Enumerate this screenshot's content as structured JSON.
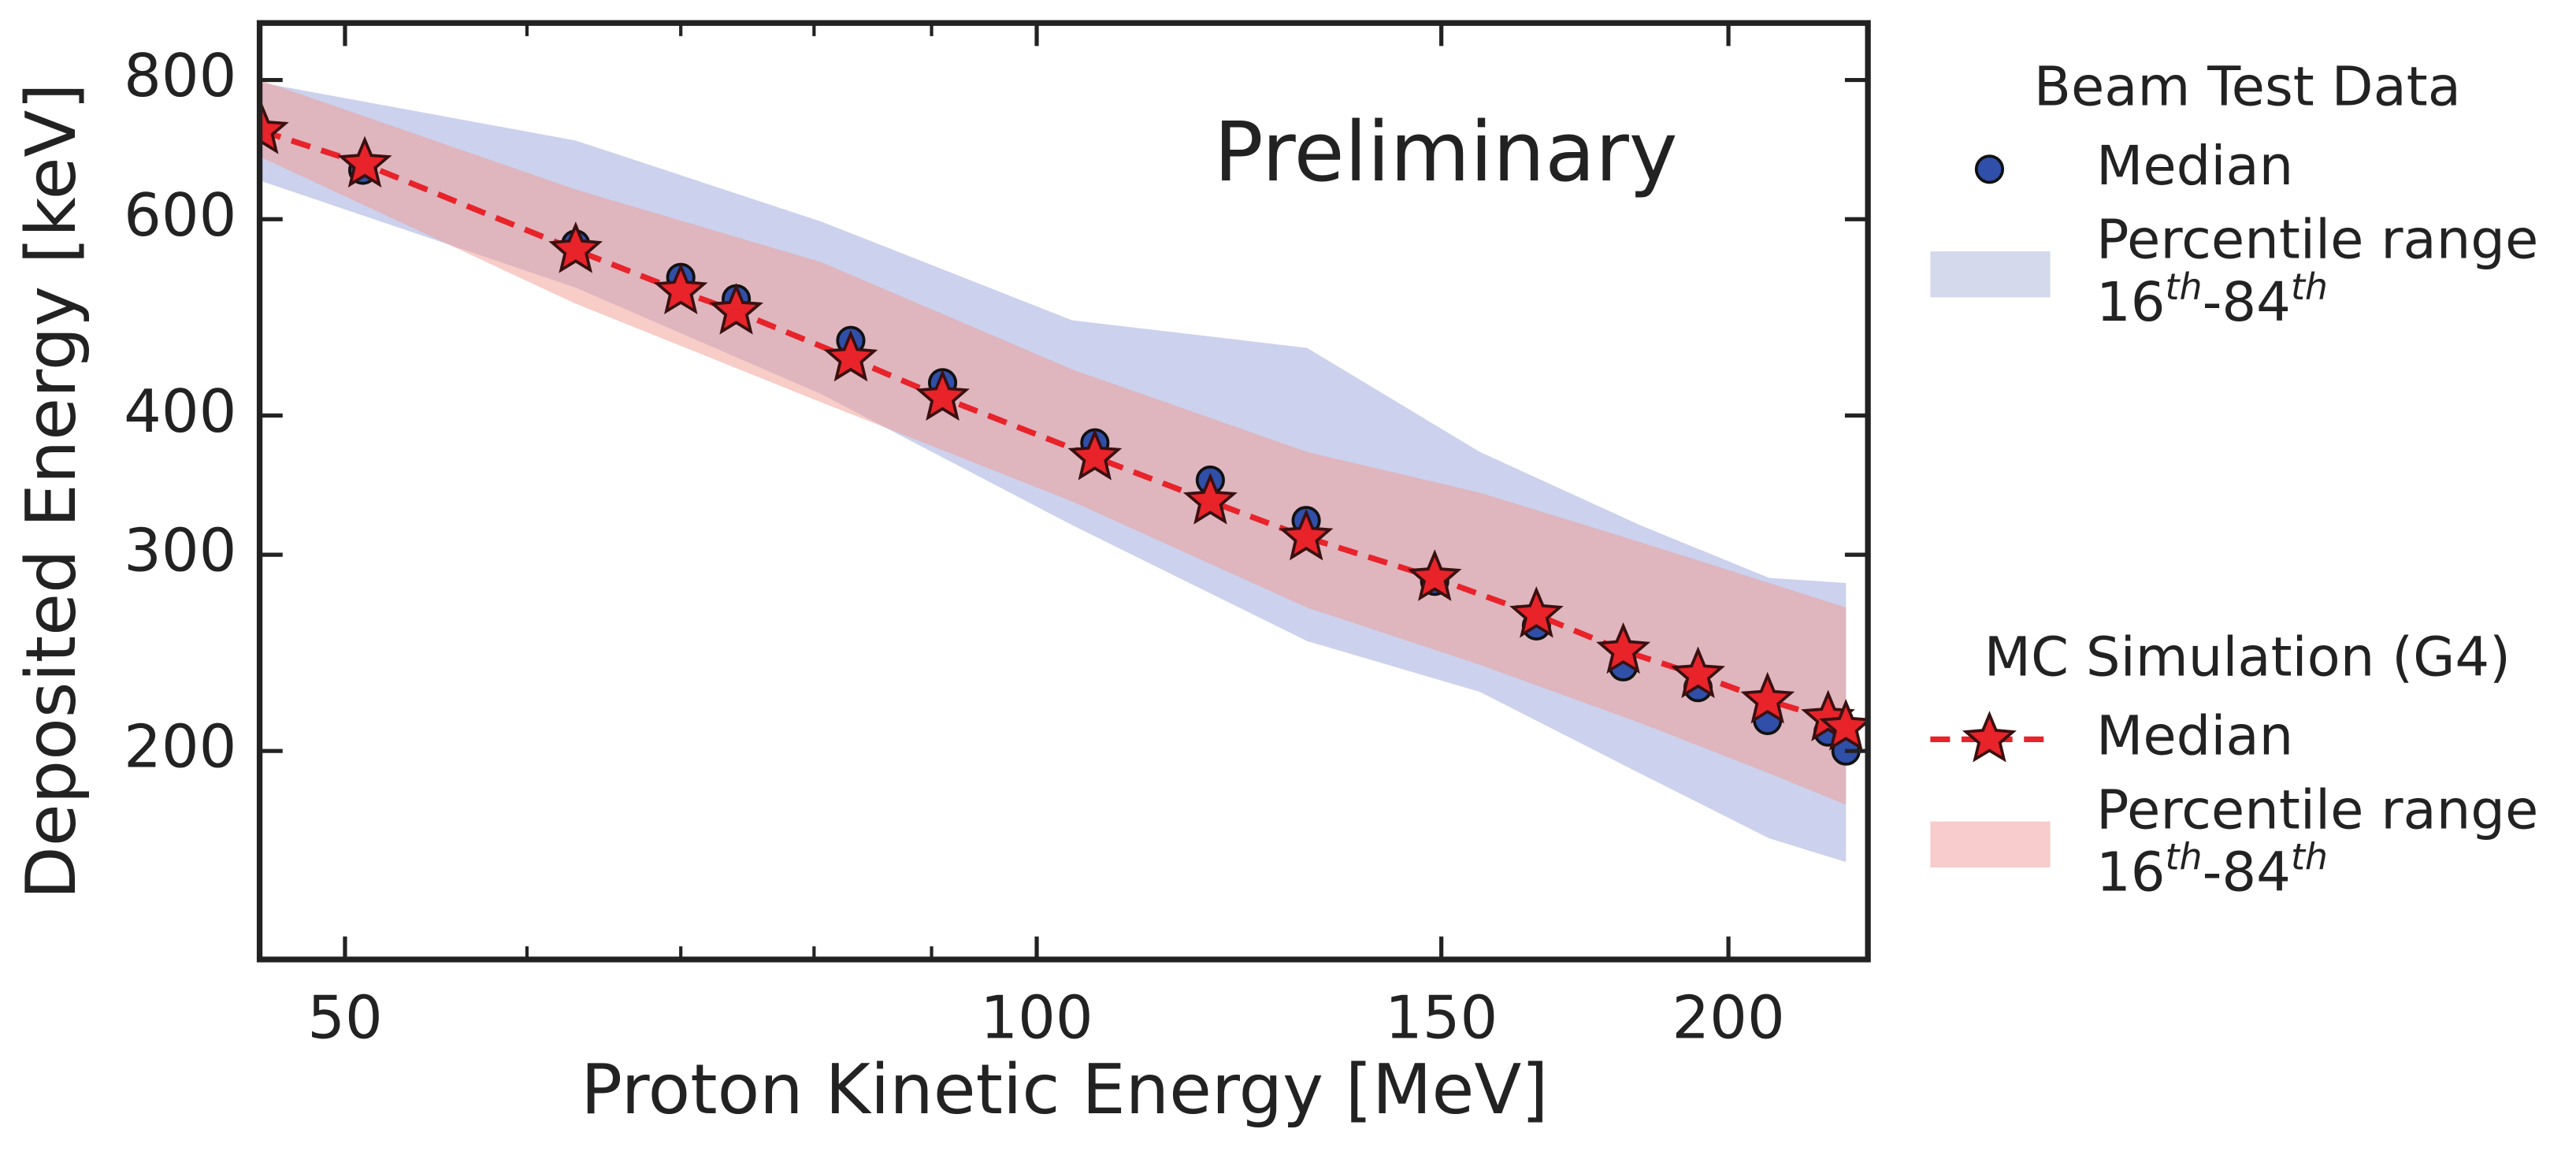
{
  "chart_data": {
    "type": "line",
    "annotation": "Preliminary",
    "xlabel": "Proton Kinetic Energy [MeV]",
    "ylabel": "Deposited Energy [keV]",
    "xscale": "log",
    "yscale": "log",
    "xlim": [
      45.9,
      230
    ],
    "ylim": [
      130,
      900
    ],
    "xticks": [
      50,
      100,
      150,
      200
    ],
    "yticks": [
      200,
      300,
      400,
      600,
      800
    ],
    "xminor": [
      60,
      70,
      80,
      90
    ],
    "legend_groups": [
      "Beam Test Data",
      "MC Simulation (G4)"
    ],
    "series": [
      {
        "kind": "band",
        "group": 0,
        "name": "Percentile range",
        "name_sup": [
          "16",
          "th",
          "-84",
          "th"
        ],
        "color": "#9aa3dc",
        "legend_color": "#d4d9ec",
        "x": [
          45.9,
          63,
          80.6,
          103.6,
          131.1,
          155.9,
          183,
          208.3,
          225
        ],
        "upper": [
          796,
          706,
          597,
          487,
          460,
          371,
          319,
          286,
          283
        ],
        "lower": [
          650,
          521,
          418,
          319,
          251,
          226,
          191,
          167,
          159
        ]
      },
      {
        "kind": "band",
        "group": 1,
        "name": "Percentile range",
        "name_sup": [
          "16",
          "th",
          "-84",
          "th"
        ],
        "color": "#f29a8f",
        "legend_color": "#f8cccc",
        "x": [
          45.9,
          63,
          80.6,
          103.6,
          131.1,
          155.9,
          183,
          208.3,
          225
        ],
        "upper": [
          800,
          638,
          549,
          440,
          371,
          341,
          308,
          283,
          269
        ],
        "lower": [
          683,
          504,
          411,
          335,
          269,
          239,
          212,
          191,
          179
        ]
      },
      {
        "kind": "markers",
        "group": 0,
        "name": "Median",
        "color": "#2f4fa8",
        "x": [
          50.9,
          63,
          70,
          74,
          83,
          91,
          106,
          119,
          131,
          149,
          165,
          180,
          194,
          208,
          221,
          225
        ],
        "values": [
          664,
          570,
          532,
          509,
          467,
          428,
          378,
          350,
          322,
          284,
          259,
          238,
          228,
          213,
          208,
          200
        ]
      },
      {
        "kind": "stars",
        "group": 1,
        "name": "Median",
        "color": "#e8232a",
        "x": [
          46,
          51,
          63,
          70,
          74,
          83,
          91,
          106,
          119,
          131,
          149,
          165,
          180,
          194,
          208,
          221,
          225
        ],
        "values": [
          720,
          672,
          563,
          517,
          496,
          450,
          415,
          367,
          335,
          311,
          286,
          265,
          246,
          234,
          222,
          214,
          210
        ]
      }
    ]
  }
}
